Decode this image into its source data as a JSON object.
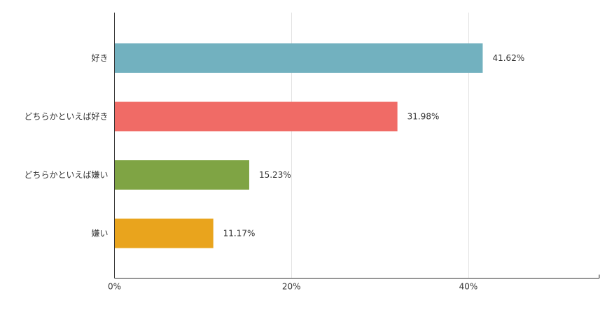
{
  "chart_data": {
    "type": "bar",
    "orientation": "horizontal",
    "categories": [
      "好き",
      "どちらかといえば好き",
      "どちらかといえば嫌い",
      "嫌い"
    ],
    "values": [
      41.62,
      31.98,
      15.23,
      11.17
    ],
    "data_labels": [
      "41.62%",
      "31.98%",
      "15.23%",
      "11.17%"
    ],
    "colors": [
      "#72b1bf",
      "#f06b66",
      "#7fa444",
      "#e9a41d"
    ],
    "xlim": [
      0,
      55
    ],
    "x_ticks": [
      0,
      20,
      40
    ],
    "x_tick_labels": [
      "0%",
      "20%",
      "40%"
    ],
    "grid": true,
    "legend": "none",
    "title": "",
    "xlabel": "",
    "ylabel": ""
  }
}
